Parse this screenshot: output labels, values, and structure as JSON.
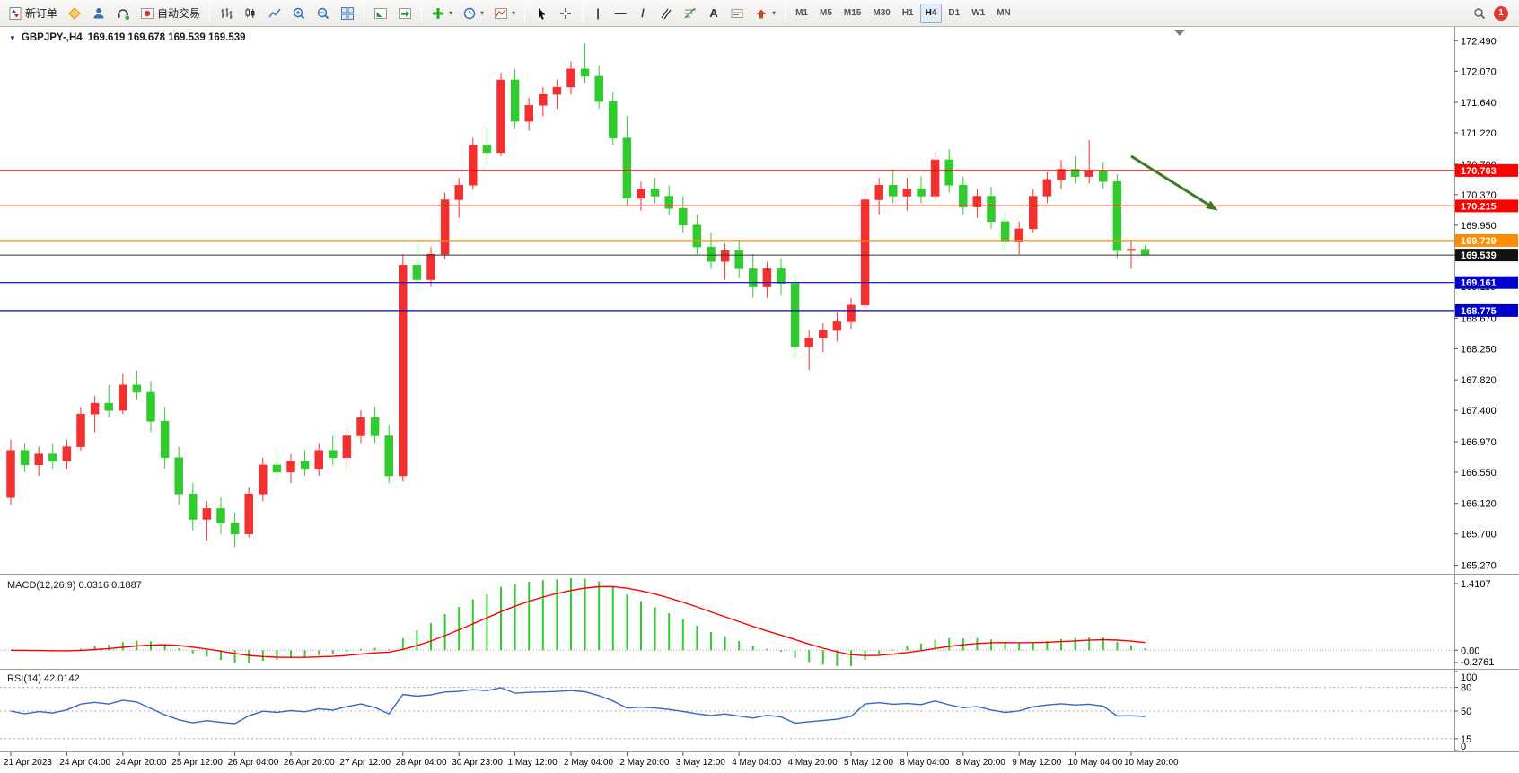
{
  "toolbar": {
    "new_order_label": "新订单",
    "autotrading_label": "自动交易",
    "timeframes": [
      "M1",
      "M5",
      "M15",
      "M30",
      "H1",
      "H4",
      "D1",
      "W1",
      "MN"
    ],
    "active_timeframe": "H4",
    "notification_badge": "1"
  },
  "icons": {
    "oneclick_arrow": "▼",
    "dropdown": "▾",
    "vertical_line": "|",
    "horizontal_line": "—",
    "trendline": "/",
    "text_tool": "A"
  },
  "chart": {
    "symbol_title": "GBPJPY-,H4",
    "ohlc_text": "169.619 169.678 169.539 169.539",
    "price_axis_labels": [
      "172.490",
      "172.070",
      "171.640",
      "171.220",
      "170.790",
      "170.370",
      "169.950",
      "169.530",
      "169.110",
      "168.670",
      "168.250",
      "167.820",
      "167.400",
      "166.970",
      "166.550",
      "166.120",
      "165.700",
      "165.270"
    ]
  },
  "macd": {
    "label": "MACD(12,26,9) 0.0316 0.1887",
    "params": [
      12,
      26,
      9
    ],
    "current_values": [
      0.0316,
      0.1887
    ],
    "axis_labels": [
      "1.4107",
      "0.00",
      "-0.2761"
    ],
    "histogram_color": "#32CD32",
    "signal_color": "#FF0000"
  },
  "rsi": {
    "label": "RSI(14) 42.0142",
    "period": 14,
    "current_value": 42.0142,
    "axis_labels": [
      "100",
      "80",
      "50",
      "15",
      "0"
    ],
    "levels": [
      80,
      50,
      15
    ],
    "line_color": "#3366CC"
  },
  "chart_data": {
    "type": "candlestick",
    "symbol": "GBPJPY-",
    "timeframe": "H4",
    "bull_color": "#F23030",
    "bear_color": "#2FCB2F",
    "price_scale": {
      "min": 165.19,
      "max": 172.58
    },
    "candles": [
      [
        166.2,
        167.0,
        166.1,
        166.85
      ],
      [
        166.85,
        166.95,
        166.55,
        166.65
      ],
      [
        166.65,
        166.9,
        166.5,
        166.8
      ],
      [
        166.8,
        166.95,
        166.6,
        166.7
      ],
      [
        166.7,
        167.0,
        166.6,
        166.9
      ],
      [
        166.9,
        167.45,
        166.85,
        167.35
      ],
      [
        167.35,
        167.6,
        167.1,
        167.5
      ],
      [
        167.5,
        167.75,
        167.3,
        167.4
      ],
      [
        167.4,
        167.9,
        167.35,
        167.75
      ],
      [
        167.75,
        167.95,
        167.55,
        167.65
      ],
      [
        167.65,
        167.8,
        167.1,
        167.25
      ],
      [
        167.25,
        167.45,
        166.6,
        166.75
      ],
      [
        166.75,
        166.9,
        166.1,
        166.25
      ],
      [
        166.25,
        166.4,
        165.75,
        165.9
      ],
      [
        165.9,
        166.15,
        165.6,
        166.05
      ],
      [
        166.05,
        166.2,
        165.7,
        165.85
      ],
      [
        165.85,
        166.0,
        165.52,
        165.7
      ],
      [
        165.7,
        166.35,
        165.65,
        166.25
      ],
      [
        166.25,
        166.75,
        166.15,
        166.65
      ],
      [
        166.65,
        166.85,
        166.45,
        166.55
      ],
      [
        166.55,
        166.8,
        166.4,
        166.7
      ],
      [
        166.7,
        166.85,
        166.5,
        166.6
      ],
      [
        166.6,
        166.95,
        166.5,
        166.85
      ],
      [
        166.85,
        167.05,
        166.65,
        166.75
      ],
      [
        166.75,
        167.15,
        166.6,
        167.05
      ],
      [
        167.05,
        167.4,
        166.95,
        167.3
      ],
      [
        167.3,
        167.45,
        166.95,
        167.05
      ],
      [
        167.05,
        167.2,
        166.4,
        166.5
      ],
      [
        166.5,
        169.55,
        166.42,
        169.4
      ],
      [
        169.4,
        169.7,
        169.05,
        169.2
      ],
      [
        169.2,
        169.65,
        169.1,
        169.55
      ],
      [
        169.55,
        170.4,
        169.48,
        170.3
      ],
      [
        170.3,
        170.6,
        170.05,
        170.5
      ],
      [
        170.5,
        171.15,
        170.45,
        171.05
      ],
      [
        171.05,
        171.3,
        170.8,
        170.95
      ],
      [
        170.95,
        172.05,
        170.9,
        171.95
      ],
      [
        171.95,
        172.1,
        171.28,
        171.38
      ],
      [
        171.38,
        171.7,
        171.25,
        171.6
      ],
      [
        171.6,
        171.85,
        171.45,
        171.75
      ],
      [
        171.75,
        171.95,
        171.55,
        171.85
      ],
      [
        171.85,
        172.2,
        171.75,
        172.1
      ],
      [
        172.1,
        172.45,
        171.9,
        172.0
      ],
      [
        172.0,
        172.15,
        171.55,
        171.65
      ],
      [
        171.65,
        171.78,
        171.05,
        171.15
      ],
      [
        171.15,
        171.45,
        170.22,
        170.32
      ],
      [
        170.32,
        170.55,
        170.15,
        170.45
      ],
      [
        170.45,
        170.6,
        170.25,
        170.35
      ],
      [
        170.35,
        170.5,
        170.08,
        170.18
      ],
      [
        170.18,
        170.35,
        169.85,
        169.95
      ],
      [
        169.95,
        170.1,
        169.55,
        169.65
      ],
      [
        169.65,
        169.85,
        169.35,
        169.45
      ],
      [
        169.45,
        169.7,
        169.2,
        169.6
      ],
      [
        169.6,
        169.75,
        169.22,
        169.35
      ],
      [
        169.35,
        169.55,
        168.95,
        169.1
      ],
      [
        169.1,
        169.45,
        168.95,
        169.35
      ],
      [
        169.35,
        169.5,
        168.98,
        169.15
      ],
      [
        169.15,
        169.28,
        168.12,
        168.28
      ],
      [
        168.28,
        168.5,
        167.96,
        168.4
      ],
      [
        168.4,
        168.6,
        168.2,
        168.5
      ],
      [
        168.5,
        168.75,
        168.35,
        168.62
      ],
      [
        168.62,
        168.95,
        168.52,
        168.85
      ],
      [
        168.85,
        170.4,
        168.8,
        170.3
      ],
      [
        170.3,
        170.6,
        170.1,
        170.5
      ],
      [
        170.5,
        170.72,
        170.25,
        170.35
      ],
      [
        170.35,
        170.6,
        170.15,
        170.45
      ],
      [
        170.45,
        170.62,
        170.25,
        170.35
      ],
      [
        170.35,
        170.95,
        170.28,
        170.85
      ],
      [
        170.85,
        171.0,
        170.4,
        170.5
      ],
      [
        170.5,
        170.62,
        170.1,
        170.2
      ],
      [
        170.2,
        170.45,
        170.05,
        170.35
      ],
      [
        170.35,
        170.48,
        169.9,
        170.0
      ],
      [
        170.0,
        170.15,
        169.6,
        169.73
      ],
      [
        169.73,
        170.0,
        169.55,
        169.9
      ],
      [
        169.9,
        170.45,
        169.85,
        170.35
      ],
      [
        170.35,
        170.68,
        170.25,
        170.58
      ],
      [
        170.58,
        170.85,
        170.45,
        170.72
      ],
      [
        170.72,
        170.9,
        170.52,
        170.62
      ],
      [
        170.62,
        171.12,
        170.52,
        170.7
      ],
      [
        170.7,
        170.82,
        170.45,
        170.55
      ],
      [
        170.55,
        170.65,
        169.5,
        169.6
      ],
      [
        169.6,
        169.75,
        169.35,
        169.62
      ],
      [
        169.619,
        169.678,
        169.539,
        169.539
      ]
    ],
    "time_labels": [
      {
        "i": 0,
        "t": "21 Apr 2023"
      },
      {
        "i": 4,
        "t": "24 Apr 04:00"
      },
      {
        "i": 8,
        "t": "24 Apr 20:00"
      },
      {
        "i": 12,
        "t": "25 Apr 12:00"
      },
      {
        "i": 16,
        "t": "26 Apr 04:00"
      },
      {
        "i": 20,
        "t": "26 Apr 20:00"
      },
      {
        "i": 24,
        "t": "27 Apr 12:00"
      },
      {
        "i": 28,
        "t": "28 Apr 04:00"
      },
      {
        "i": 32,
        "t": "30 Apr 23:00"
      },
      {
        "i": 36,
        "t": "1 May 12:00"
      },
      {
        "i": 40,
        "t": "2 May 04:00"
      },
      {
        "i": 44,
        "t": "2 May 20:00"
      },
      {
        "i": 48,
        "t": "3 May 12:00"
      },
      {
        "i": 52,
        "t": "4 May 04:00"
      },
      {
        "i": 56,
        "t": "4 May 20:00"
      },
      {
        "i": 60,
        "t": "5 May 12:00"
      },
      {
        "i": 64,
        "t": "8 May 04:00"
      },
      {
        "i": 68,
        "t": "8 May 20:00"
      },
      {
        "i": 72,
        "t": "9 May 12:00"
      },
      {
        "i": 76,
        "t": "10 May 04:00"
      },
      {
        "i": 80,
        "t": "10 May 20:00"
      }
    ],
    "lines": [
      {
        "price": 170.703,
        "label": "170.703",
        "color": "#FF0000"
      },
      {
        "price": 170.215,
        "label": "170.215",
        "color": "#FF0000"
      },
      {
        "price": 169.739,
        "label": "169.739",
        "color": "#FF8C00"
      },
      {
        "price": 169.161,
        "label": "169.161",
        "color": "#0000CD"
      },
      {
        "price": 168.775,
        "label": "168.775",
        "color": "#0000CD"
      }
    ],
    "current_price": {
      "value": 169.539,
      "label": "169.539"
    },
    "arrow": {
      "from": {
        "index": 80,
        "price": 170.9
      },
      "to": {
        "index": 86.2,
        "price": 170.15
      },
      "color": "#3A7D23"
    }
  }
}
